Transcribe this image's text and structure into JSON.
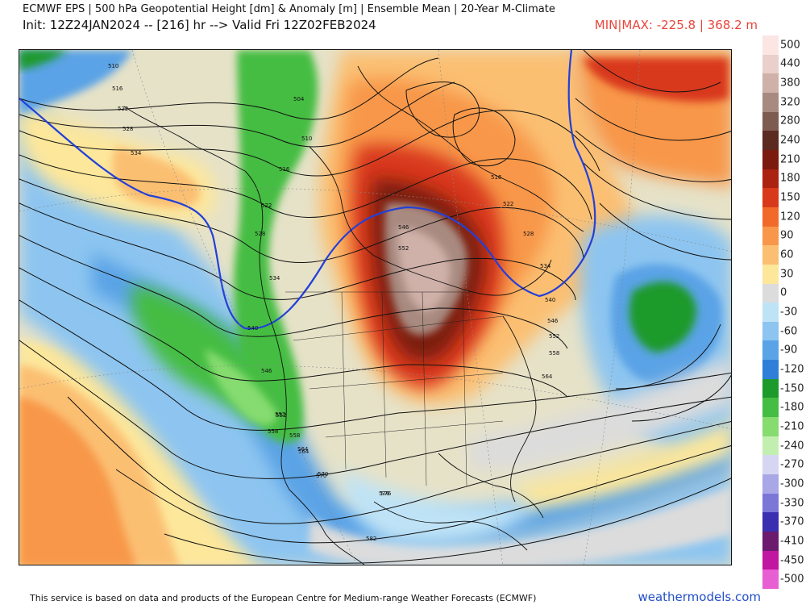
{
  "header": {
    "title": "ECMWF EPS | 500 hPa Geopotential Height [dm] & Anomaly [m] | Ensemble Mean | 20-Year M-Climate",
    "init_valid": "Init: 12Z24JAN2024 -- [216] hr --> Valid Fri 12Z02FEB2024",
    "minmax": "MIN|MAX: -225.8 | 368.2 m"
  },
  "legend": {
    "bins": [
      {
        "label": "500",
        "color": "#fbe6e4"
      },
      {
        "label": "440",
        "color": "#e9d0cb"
      },
      {
        "label": "380",
        "color": "#cfb1a9"
      },
      {
        "label": "320",
        "color": "#a88a80"
      },
      {
        "label": "280",
        "color": "#7e5b51"
      },
      {
        "label": "240",
        "color": "#5b2a20"
      },
      {
        "label": "210",
        "color": "#7b1a0e"
      },
      {
        "label": "180",
        "color": "#ab2211"
      },
      {
        "label": "150",
        "color": "#d8391a"
      },
      {
        "label": "120",
        "color": "#f26a2a"
      },
      {
        "label": "90",
        "color": "#f8974a"
      },
      {
        "label": "60",
        "color": "#fbbf72"
      },
      {
        "label": "30",
        "color": "#fde79b"
      },
      {
        "label": "0",
        "color": "#dcdcdc"
      },
      {
        "label": "-30",
        "color": "#bfe3f6"
      },
      {
        "label": "-60",
        "color": "#8dc5f0"
      },
      {
        "label": "-90",
        "color": "#5aa3e6"
      },
      {
        "label": "-120",
        "color": "#2f7fd9"
      },
      {
        "label": "-150",
        "color": "#1d9a2c"
      },
      {
        "label": "-180",
        "color": "#44bd43"
      },
      {
        "label": "-210",
        "color": "#86dc6f"
      },
      {
        "label": "-240",
        "color": "#c2efb0"
      },
      {
        "label": "-270",
        "color": "#d7d6f2"
      },
      {
        "label": "-300",
        "color": "#a9a7e6"
      },
      {
        "label": "-330",
        "color": "#7a77d6"
      },
      {
        "label": "-370",
        "color": "#3a2fb0"
      },
      {
        "label": "-410",
        "color": "#6b1a6e"
      },
      {
        "label": "-450",
        "color": "#c1169f"
      },
      {
        "label": "-500",
        "color": "#e85fd4"
      }
    ]
  },
  "map": {
    "contour_labels": [
      "510",
      "516",
      "522",
      "528",
      "534",
      "504",
      "510",
      "516",
      "522",
      "528",
      "534",
      "540",
      "546",
      "552",
      "558",
      "564",
      "570",
      "576",
      "582",
      "516",
      "522",
      "528",
      "534",
      "540",
      "546",
      "552",
      "558",
      "564",
      "546",
      "552",
      "552",
      "558",
      "564",
      "570",
      "576"
    ]
  },
  "footer": {
    "note": "This service is based on data and products of the European Centre for Medium-range Weather Forecasts (ECMWF)",
    "brand": "weathermodels.com"
  }
}
